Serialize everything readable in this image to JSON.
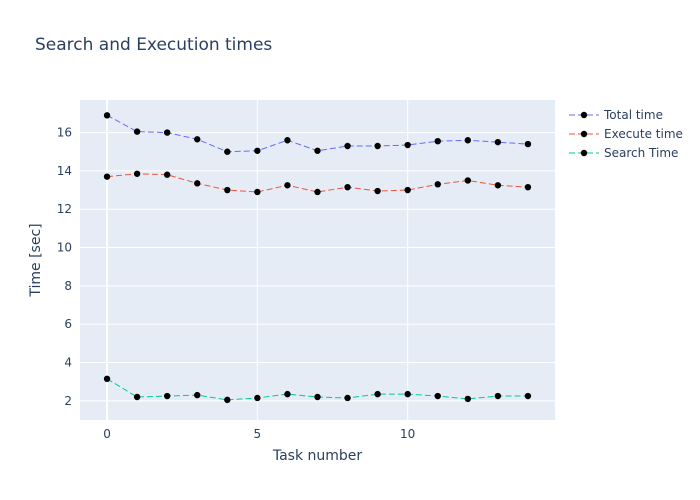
{
  "chart_data": {
    "type": "line",
    "title": "Search and Execution times",
    "xlabel": "Task number",
    "ylabel": "Time [sec]",
    "xlim": [
      -0.9,
      14.9
    ],
    "ylim": [
      1.0,
      17.7
    ],
    "xticks": [
      0,
      5,
      10
    ],
    "yticks": [
      2,
      4,
      6,
      8,
      10,
      12,
      14,
      16
    ],
    "grid": true,
    "legend_position": "top-right",
    "marker_color": "#000000",
    "plot_background": "#e5ecf6",
    "x": [
      0,
      1,
      2,
      3,
      4,
      5,
      6,
      7,
      8,
      9,
      10,
      11,
      12,
      13,
      14
    ],
    "series": [
      {
        "name": "Total time",
        "color": "#636efa",
        "line_style": "dash",
        "values": [
          16.9,
          16.05,
          16.0,
          15.65,
          15.0,
          15.05,
          15.6,
          15.05,
          15.3,
          15.3,
          15.35,
          15.55,
          15.6,
          15.5,
          15.4
        ]
      },
      {
        "name": "Execute time",
        "color": "#ef553b",
        "line_style": "dash",
        "values": [
          13.7,
          13.85,
          13.8,
          13.35,
          13.0,
          12.9,
          13.25,
          12.9,
          13.15,
          12.95,
          13.0,
          13.3,
          13.5,
          13.25,
          13.15
        ]
      },
      {
        "name": "Search Time",
        "color": "#00cc96",
        "line_style": "dash",
        "values": [
          3.15,
          2.2,
          2.25,
          2.3,
          2.05,
          2.15,
          2.35,
          2.2,
          2.15,
          2.35,
          2.35,
          2.25,
          2.1,
          2.25,
          2.25
        ]
      }
    ]
  }
}
